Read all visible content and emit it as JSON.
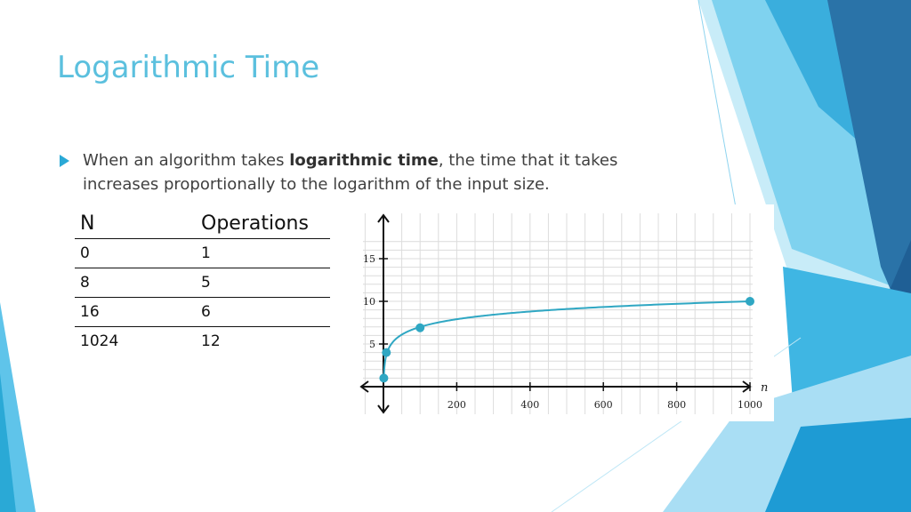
{
  "slide": {
    "title": "Logarithmic Time",
    "bullet": {
      "text_before": "When an algorithm takes ",
      "bold": "logarithmic time",
      "text_after": ", the time that it takes increases proportionally to the logarithm of the input size."
    }
  },
  "table": {
    "headers": [
      "N",
      "Operations"
    ],
    "rows": [
      [
        "0",
        "1"
      ],
      [
        "8",
        "5"
      ],
      [
        "16",
        "6"
      ],
      [
        "1024",
        "12"
      ]
    ]
  },
  "colors": {
    "title": "#5bc0de",
    "accent": "#2aa9d6",
    "curve": "#2fa7c3"
  },
  "chart_data": {
    "type": "line",
    "xlabel": "n",
    "ylabel": "",
    "xlim": [
      0,
      1000
    ],
    "ylim": [
      0,
      15
    ],
    "x_ticks": [
      200,
      400,
      600,
      800,
      1000
    ],
    "y_ticks": [
      5,
      10,
      15
    ],
    "grid": true,
    "series": [
      {
        "points": [
          [
            1,
            1
          ],
          [
            8,
            4
          ],
          [
            100,
            6.9
          ],
          [
            1000,
            10
          ]
        ]
      }
    ]
  }
}
